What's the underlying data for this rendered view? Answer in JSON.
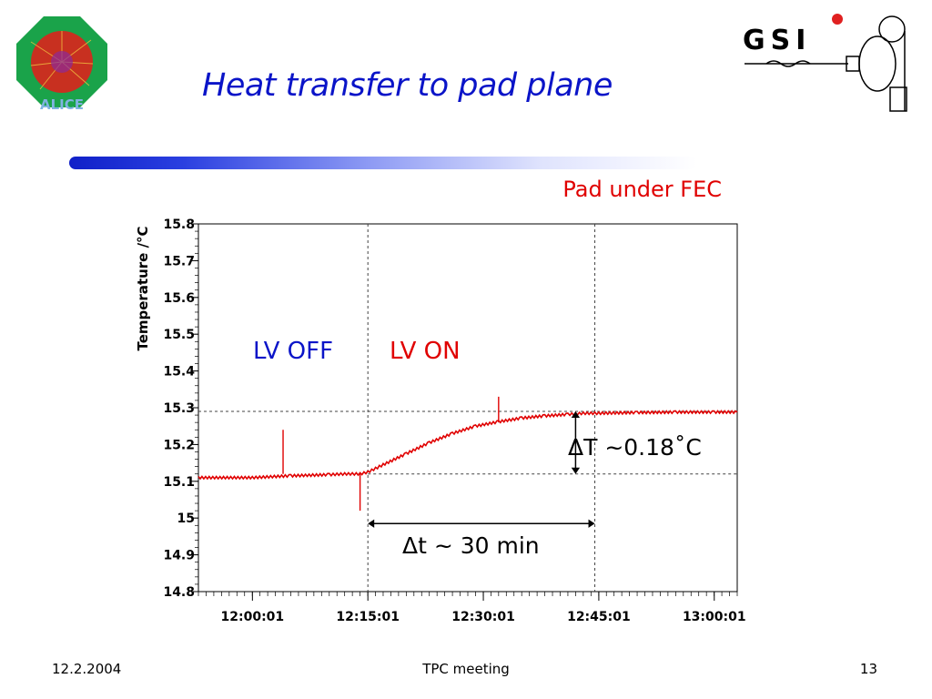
{
  "slide": {
    "title": "Heat transfer to pad plane",
    "footer_date": "12.2.2004",
    "footer_center": "TPC meeting",
    "page_number": "13"
  },
  "logos": {
    "left_text": "ALICE",
    "right_text": "GSI",
    "left_icon": "alice-detector-logo",
    "right_icon": "gsi-accelerator-logo"
  },
  "colors": {
    "title": "#0a14c8",
    "series": "#e00000",
    "annotation_blue": "#0a14c8",
    "annotation_red": "#e00000",
    "axis": "#000000",
    "guide": "#444444"
  },
  "chart_data": {
    "type": "line",
    "title": "Pad under FEC",
    "xlabel": "",
    "ylabel": "Temperature /°C",
    "ylim": [
      14.8,
      15.8
    ],
    "xlim": [
      "11:53:00",
      "13:03:00"
    ],
    "yticks": [
      "15.8",
      "15.7",
      "15.6",
      "15.5",
      "15.4",
      "15.3",
      "15.2",
      "15.1",
      "15",
      "14.9",
      "14.8"
    ],
    "xticks": [
      "12:00:01",
      "12:15:01",
      "12:30:01",
      "12:45:01",
      "13:00:01"
    ],
    "grid": false,
    "legend": "none",
    "series": [
      {
        "x": [
          "11:53:00",
          "12:00:00",
          "12:05:00",
          "12:10:00",
          "12:12:00",
          "12:14:00",
          "12:15:01",
          "12:17:00",
          "12:20:00",
          "12:23:00",
          "12:26:00",
          "12:29:00",
          "12:32:00",
          "12:35:00",
          "12:38:00",
          "12:41:00",
          "12:43:00",
          "12:45:00",
          "12:50:00",
          "12:55:00",
          "13:00:00",
          "13:03:00"
        ],
        "values": [
          15.11,
          15.11,
          15.115,
          15.118,
          15.12,
          15.12,
          15.125,
          15.145,
          15.175,
          15.205,
          15.23,
          15.25,
          15.262,
          15.272,
          15.278,
          15.282,
          15.285,
          15.285,
          15.287,
          15.288,
          15.288,
          15.288
        ],
        "spikes": [
          {
            "x": "12:04:00",
            "from": 15.12,
            "to": 15.24
          },
          {
            "x": "12:14:00",
            "from": 15.12,
            "to": 15.02
          },
          {
            "x": "12:32:00",
            "from": 15.26,
            "to": 15.33
          }
        ]
      }
    ],
    "annotations": {
      "lv_off": "LV OFF",
      "lv_on": "LV ON",
      "delta_T": "ΔT ~0.18˚C",
      "delta_t": "Δt ~ 30 min",
      "lv_switch_time": "12:15:01",
      "plateau_time": "12:44:30",
      "baseline_temp": 15.12,
      "plateau_temp": 15.29
    }
  }
}
